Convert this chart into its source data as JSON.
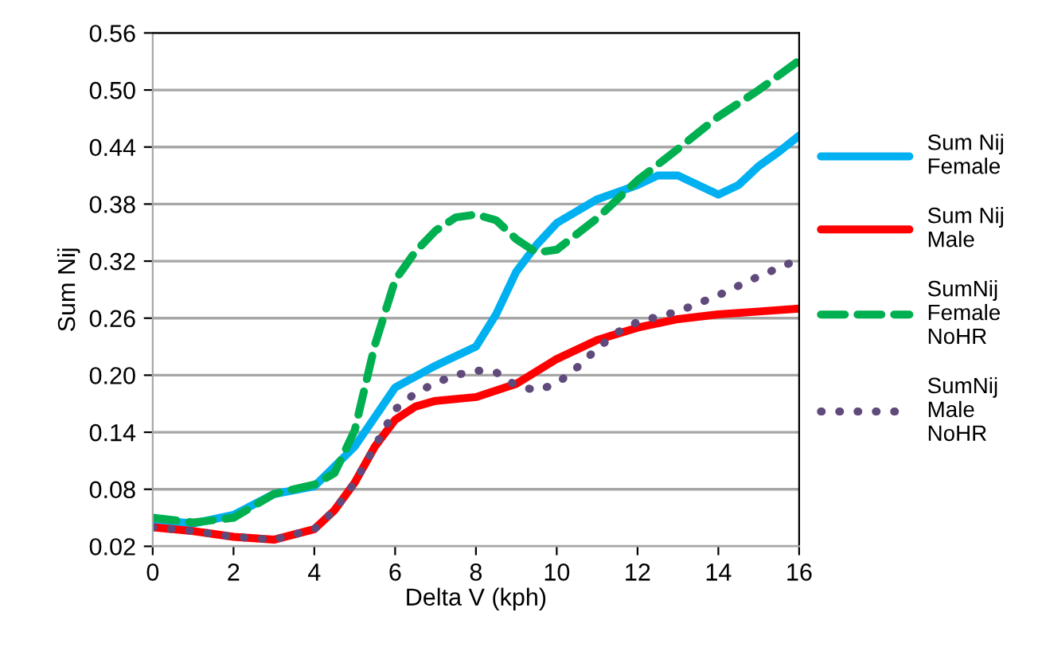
{
  "chart_data": {
    "type": "line",
    "xlabel": "Delta V (kph)",
    "ylabel": "Sum Nij",
    "xlim": [
      0,
      16
    ],
    "xticks": [
      0,
      2,
      4,
      6,
      8,
      10,
      12,
      14,
      16
    ],
    "ylim": [
      0.02,
      0.56
    ],
    "yticks": [
      {
        "value": 0.02,
        "label": "0.02"
      },
      {
        "value": 0.08,
        "label": "0.08"
      },
      {
        "value": 0.14,
        "label": "0.14"
      },
      {
        "value": 0.2,
        "label": "0.20"
      },
      {
        "value": 0.26,
        "label": "0.26"
      },
      {
        "value": 0.32,
        "label": "0.32"
      },
      {
        "value": 0.38,
        "label": "0.38"
      },
      {
        "value": 0.44,
        "label": "0.44"
      },
      {
        "value": 0.5,
        "label": "0.50"
      },
      {
        "value": 0.56,
        "label": "0.56"
      }
    ],
    "grid": "y",
    "legend": "right",
    "series": [
      {
        "name": "Sum Nij\nFemale",
        "color": "#00b0f0",
        "line_style": "solid",
        "x": [
          0,
          1,
          2,
          3,
          4,
          5,
          5.5,
          6,
          7,
          8,
          8.5,
          9,
          9.5,
          10,
          11,
          12,
          12.5,
          13,
          13.5,
          14,
          14.5,
          15,
          15.5,
          16
        ],
        "values": [
          0.048,
          0.044,
          0.053,
          0.075,
          0.083,
          0.125,
          0.156,
          0.187,
          0.21,
          0.23,
          0.264,
          0.309,
          0.337,
          0.36,
          0.385,
          0.4,
          0.41,
          0.41,
          0.4,
          0.39,
          0.4,
          0.42,
          0.435,
          0.452
        ]
      },
      {
        "name": "Sum Nij\nMale",
        "color": "#ff0000",
        "line_style": "solid",
        "x": [
          0,
          1,
          2,
          3,
          4,
          4.5,
          5,
          5.5,
          6,
          6.5,
          7,
          8,
          9,
          10,
          11,
          12,
          13,
          14,
          15,
          16
        ],
        "values": [
          0.04,
          0.036,
          0.03,
          0.027,
          0.038,
          0.058,
          0.087,
          0.125,
          0.153,
          0.167,
          0.173,
          0.177,
          0.191,
          0.217,
          0.237,
          0.25,
          0.259,
          0.264,
          0.267,
          0.27
        ]
      },
      {
        "name": "SumNij\nFemale\nNoHR",
        "color": "#00b050",
        "line_style": "dashed",
        "x": [
          0,
          1,
          2,
          3,
          4,
          4.5,
          5,
          5.5,
          6,
          6.5,
          7,
          7.5,
          8,
          8.5,
          9,
          9.5,
          10,
          11,
          12,
          13,
          14,
          15,
          16
        ],
        "values": [
          0.05,
          0.045,
          0.05,
          0.075,
          0.085,
          0.097,
          0.142,
          0.232,
          0.3,
          0.33,
          0.352,
          0.366,
          0.369,
          0.363,
          0.343,
          0.329,
          0.332,
          0.365,
          0.405,
          0.438,
          0.472,
          0.5,
          0.531
        ]
      },
      {
        "name": "SumNij\nMale\nNoHR",
        "color": "#604a7b",
        "line_style": "dotted",
        "x": [
          0,
          1,
          2,
          3,
          4,
          4.5,
          5,
          5.5,
          6,
          6.5,
          7,
          7.5,
          8,
          8.5,
          9,
          9.5,
          10,
          10.5,
          11,
          11.5,
          12,
          13,
          14,
          15,
          16
        ],
        "values": [
          0.04,
          0.036,
          0.03,
          0.027,
          0.038,
          0.058,
          0.087,
          0.125,
          0.164,
          0.181,
          0.192,
          0.2,
          0.205,
          0.203,
          0.189,
          0.184,
          0.191,
          0.208,
          0.228,
          0.245,
          0.256,
          0.267,
          0.284,
          0.304,
          0.322
        ]
      }
    ]
  }
}
